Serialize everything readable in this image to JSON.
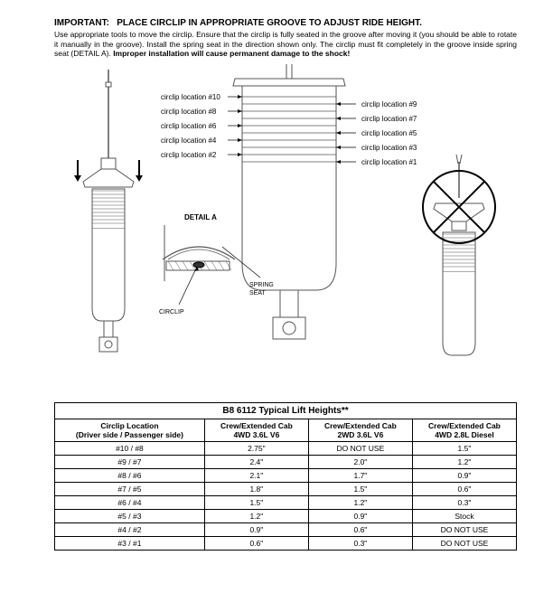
{
  "header": {
    "important_label": "IMPORTANT:",
    "important_text": "PLACE CIRCLIP IN APPROPRIATE GROOVE TO ADJUST RIDE HEIGHT.",
    "body_pre": "Use appropriate tools to move the circlip.  Ensure that the circlip is fully seated in the groove after moving it (you should be able to rotate it manually in the groove).  Install the spring seat in the direction shown only.  The circlip must fit completely in the groove inside spring seat (DETAIL A).  ",
    "body_bold": "Improper installation will cause permanent damage to the shock!"
  },
  "diagram": {
    "left_labels": [
      "circlip location #10",
      "circlip location #8",
      "circlip location #6",
      "circlip location #4",
      "circlip location #2"
    ],
    "right_labels": [
      "circlip location #9",
      "circlip location #7",
      "circlip location #5",
      "circlip location #3",
      "circlip location #1"
    ],
    "detail_title": "DETAIL A",
    "spring_seat_label": "SPRING SEAT",
    "circlip_label": "CIRCLIP",
    "stroke": "#555555",
    "fill": "#ffffff",
    "label_fontsize": 8,
    "detail_fontsize": 8
  },
  "table": {
    "title": "B8 6112 Typical Lift Heights**",
    "columns": [
      "Circlip Location\n(Driver side / Passenger side)",
      "Crew/Extended Cab\n4WD 3.6L V6",
      "Crew/Extended Cab\n2WD 3.6L V6",
      "Crew/Extended Cab\n4WD 2.8L Diesel"
    ],
    "rows": [
      [
        "#10 / #8",
        "2.75\"",
        "DO NOT USE",
        "1.5\""
      ],
      [
        "#9 / #7",
        "2.4\"",
        "2.0\"",
        "1.2\""
      ],
      [
        "#8 / #6",
        "2.1\"",
        "1.7\"",
        "0.9\""
      ],
      [
        "#7 / #5",
        "1.8\"",
        "1.5\"",
        "0.6\""
      ],
      [
        "#6 / #4",
        "1.5\"",
        "1.2\"",
        "0.3\""
      ],
      [
        "#5 / #3",
        "1.2\"",
        "0.9\"",
        "Stock"
      ],
      [
        "#4 / #2",
        "0.9\"",
        "0.6\"",
        "DO NOT USE"
      ],
      [
        "#3 / #1",
        "0.6\"",
        "0.3\"",
        "DO NOT USE"
      ]
    ]
  }
}
